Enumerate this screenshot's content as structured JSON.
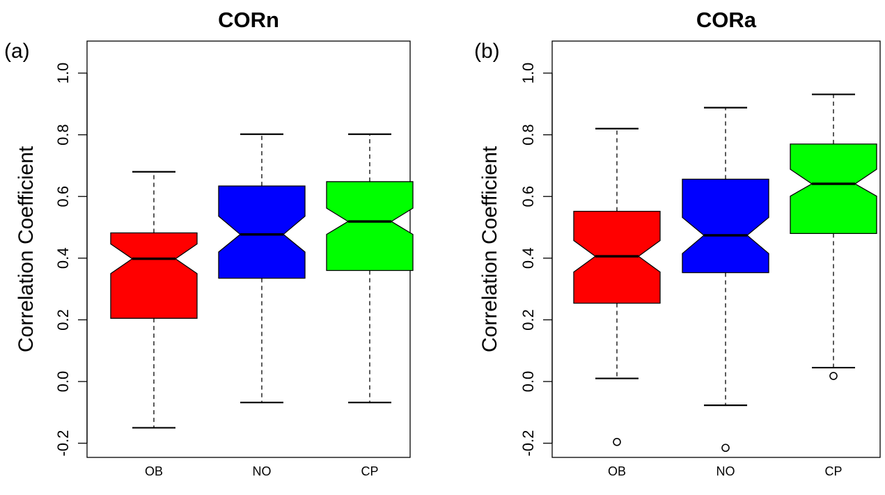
{
  "chart_data": [
    {
      "type": "boxplot",
      "panel_label": "(a)",
      "title": "CORn",
      "ylabel": "Correlation Coefficient",
      "ylim": [
        -0.25,
        1.05
      ],
      "yticks": [
        "-0.2",
        "0.0",
        "0.2",
        "0.4",
        "0.6",
        "0.8",
        "1.0"
      ],
      "notched": true,
      "categories": [
        "OB",
        "NO",
        "CP"
      ],
      "boxes": [
        {
          "category": "OB",
          "color": "#ff0000",
          "whisker_low": -0.15,
          "q1": 0.205,
          "median": 0.398,
          "q3": 0.482,
          "whisker_high": 0.68,
          "notch_low": 0.35,
          "notch_high": 0.446,
          "outliers": []
        },
        {
          "category": "NO",
          "color": "#0000ff",
          "whisker_low": -0.068,
          "q1": 0.335,
          "median": 0.477,
          "q3": 0.634,
          "whisker_high": 0.802,
          "notch_low": 0.42,
          "notch_high": 0.536,
          "outliers": []
        },
        {
          "category": "CP",
          "color": "#00ff00",
          "whisker_low": -0.068,
          "q1": 0.36,
          "median": 0.519,
          "q3": 0.648,
          "whisker_high": 0.802,
          "notch_low": 0.477,
          "notch_high": 0.562,
          "outliers": []
        }
      ]
    },
    {
      "type": "boxplot",
      "panel_label": "(b)",
      "title": "CORa",
      "ylabel": "Correlation Coefficient",
      "ylim": [
        -0.25,
        1.05
      ],
      "yticks": [
        "-0.2",
        "0.0",
        "0.2",
        "0.4",
        "0.6",
        "0.8",
        "1.0"
      ],
      "notched": true,
      "categories": [
        "OB",
        "NO",
        "CP"
      ],
      "boxes": [
        {
          "category": "OB",
          "color": "#ff0000",
          "whisker_low": 0.01,
          "q1": 0.254,
          "median": 0.406,
          "q3": 0.552,
          "whisker_high": 0.82,
          "notch_low": 0.355,
          "notch_high": 0.457,
          "outliers": [
            -0.196
          ]
        },
        {
          "category": "NO",
          "color": "#0000ff",
          "whisker_low": -0.077,
          "q1": 0.353,
          "median": 0.474,
          "q3": 0.656,
          "whisker_high": 0.888,
          "notch_low": 0.415,
          "notch_high": 0.532,
          "outliers": [
            -0.215
          ]
        },
        {
          "category": "CP",
          "color": "#00ff00",
          "whisker_low": 0.045,
          "q1": 0.48,
          "median": 0.641,
          "q3": 0.77,
          "whisker_high": 0.931,
          "notch_low": 0.601,
          "notch_high": 0.688,
          "outliers": [
            0.018
          ]
        }
      ]
    }
  ]
}
